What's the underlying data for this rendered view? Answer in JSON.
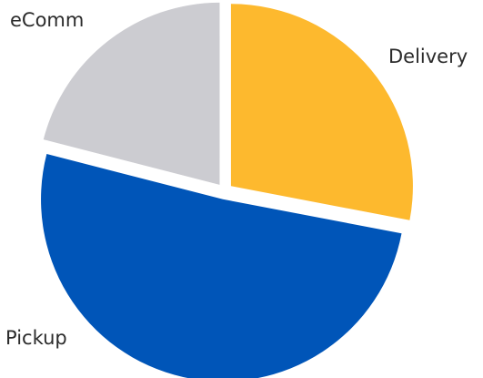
{
  "chart_data": {
    "type": "pie",
    "title": "",
    "start_angle_deg": 0,
    "direction": "clockwise",
    "slices": [
      {
        "label": "Delivery",
        "value": 28,
        "color": "#FDB92E"
      },
      {
        "label": "Pickup",
        "value": 51,
        "color": "#0055B8"
      },
      {
        "label": "eComm",
        "value": 21,
        "color": "#CCCCD1"
      }
    ]
  }
}
